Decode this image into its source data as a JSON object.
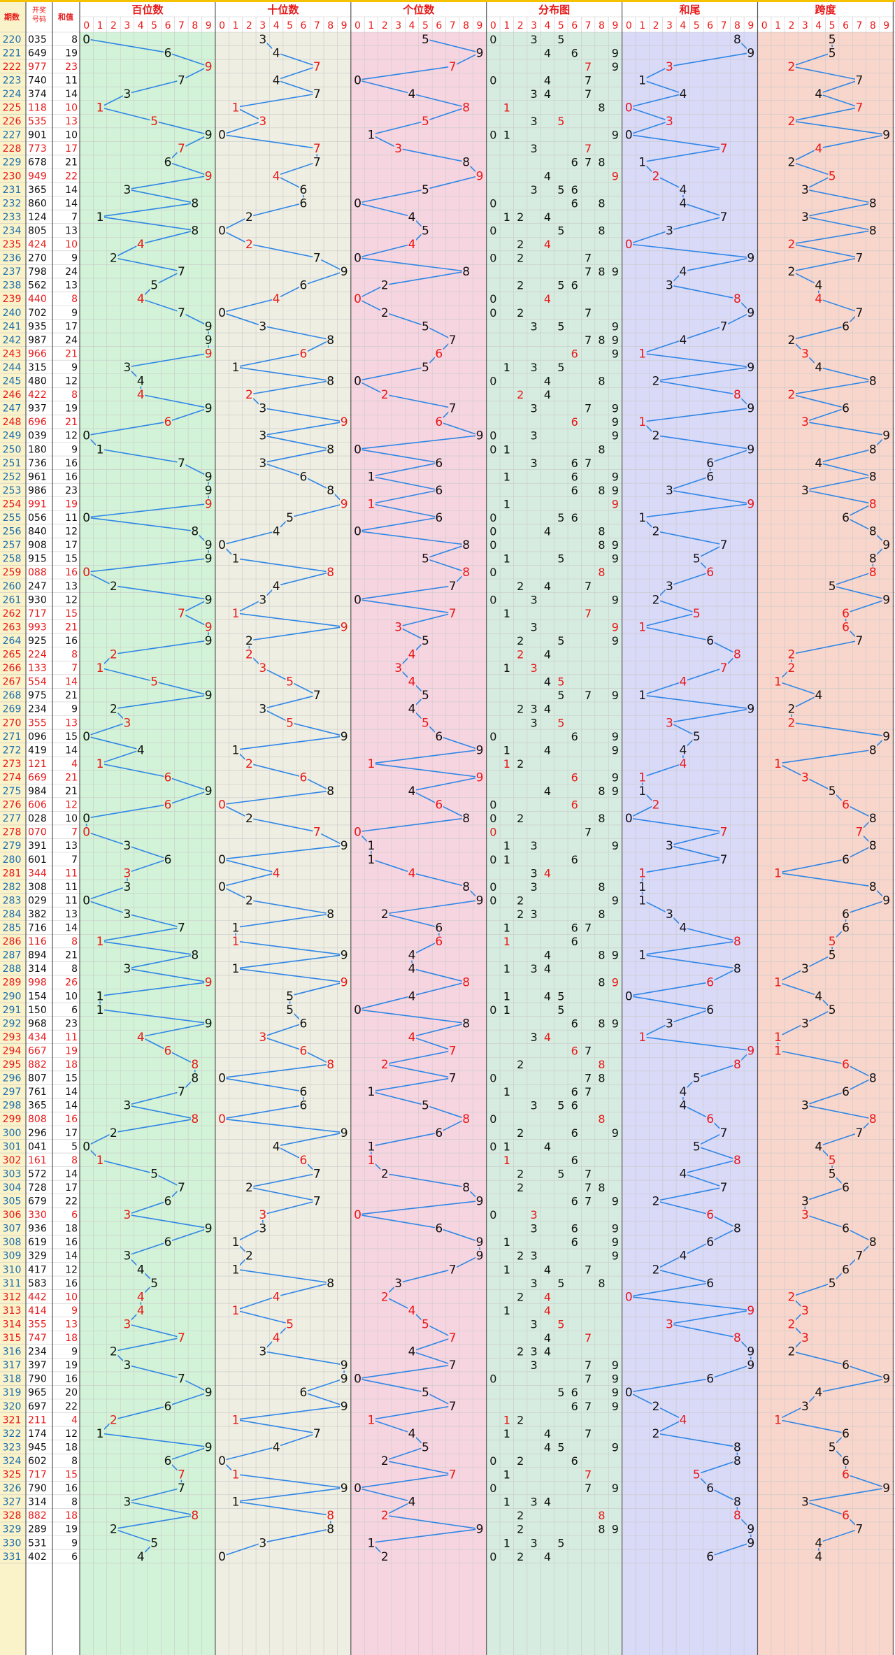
{
  "header": {
    "col_issue": "期数",
    "col_draw": "开奖号码",
    "col_sum": "和值",
    "sections": [
      "百位数",
      "十位数",
      "个位数",
      "分布图",
      "和尾",
      "跨度"
    ],
    "digits": [
      "0",
      "1",
      "2",
      "3",
      "4",
      "5",
      "6",
      "7",
      "8",
      "9"
    ]
  },
  "colors": {
    "gold": "#f5c200",
    "red": "#e81818",
    "blue": "#2f86e6",
    "issue_blue": "#1a6fb0",
    "section_bg": [
      "#d2f3d7",
      "#eeeee3",
      "#f6d5e0",
      "#d6ece0",
      "#d9d9f8",
      "#f8d6cc"
    ]
  },
  "chart_data": {
    "type": "table",
    "title": "",
    "rows": [
      {
        "issue": "220",
        "draw": "035",
        "sum": "8"
      },
      {
        "issue": "221",
        "draw": "649",
        "sum": "19"
      },
      {
        "issue": "222",
        "draw": "977",
        "sum": "23"
      },
      {
        "issue": "223",
        "draw": "740",
        "sum": "11"
      },
      {
        "issue": "224",
        "draw": "374",
        "sum": "14"
      },
      {
        "issue": "225",
        "draw": "118",
        "sum": "10"
      },
      {
        "issue": "226",
        "draw": "535",
        "sum": "13"
      },
      {
        "issue": "227",
        "draw": "901",
        "sum": "10"
      },
      {
        "issue": "228",
        "draw": "773",
        "sum": "17"
      },
      {
        "issue": "229",
        "draw": "678",
        "sum": "21"
      },
      {
        "issue": "230",
        "draw": "949",
        "sum": "22"
      },
      {
        "issue": "231",
        "draw": "365",
        "sum": "14"
      },
      {
        "issue": "232",
        "draw": "860",
        "sum": "14"
      },
      {
        "issue": "233",
        "draw": "124",
        "sum": "7"
      },
      {
        "issue": "234",
        "draw": "805",
        "sum": "13"
      },
      {
        "issue": "235",
        "draw": "424",
        "sum": "10"
      },
      {
        "issue": "236",
        "draw": "270",
        "sum": "9"
      },
      {
        "issue": "237",
        "draw": "798",
        "sum": "24"
      },
      {
        "issue": "238",
        "draw": "562",
        "sum": "13"
      },
      {
        "issue": "239",
        "draw": "440",
        "sum": "8"
      },
      {
        "issue": "240",
        "draw": "702",
        "sum": "9"
      },
      {
        "issue": "241",
        "draw": "935",
        "sum": "17"
      },
      {
        "issue": "242",
        "draw": "987",
        "sum": "24"
      },
      {
        "issue": "243",
        "draw": "966",
        "sum": "21"
      },
      {
        "issue": "244",
        "draw": "315",
        "sum": "9"
      },
      {
        "issue": "245",
        "draw": "480",
        "sum": "12"
      },
      {
        "issue": "246",
        "draw": "422",
        "sum": "8"
      },
      {
        "issue": "247",
        "draw": "937",
        "sum": "19"
      },
      {
        "issue": "248",
        "draw": "696",
        "sum": "21"
      },
      {
        "issue": "249",
        "draw": "039",
        "sum": "12"
      },
      {
        "issue": "250",
        "draw": "180",
        "sum": "9"
      },
      {
        "issue": "251",
        "draw": "736",
        "sum": "16"
      },
      {
        "issue": "252",
        "draw": "961",
        "sum": "16"
      },
      {
        "issue": "253",
        "draw": "986",
        "sum": "23"
      },
      {
        "issue": "254",
        "draw": "991",
        "sum": "19"
      },
      {
        "issue": "255",
        "draw": "056",
        "sum": "11"
      },
      {
        "issue": "256",
        "draw": "840",
        "sum": "12"
      },
      {
        "issue": "257",
        "draw": "908",
        "sum": "17"
      },
      {
        "issue": "258",
        "draw": "915",
        "sum": "15"
      },
      {
        "issue": "259",
        "draw": "088",
        "sum": "16"
      },
      {
        "issue": "260",
        "draw": "247",
        "sum": "13"
      },
      {
        "issue": "261",
        "draw": "930",
        "sum": "12"
      },
      {
        "issue": "262",
        "draw": "717",
        "sum": "15"
      },
      {
        "issue": "263",
        "draw": "993",
        "sum": "21"
      },
      {
        "issue": "264",
        "draw": "925",
        "sum": "16"
      },
      {
        "issue": "265",
        "draw": "224",
        "sum": "8"
      },
      {
        "issue": "266",
        "draw": "133",
        "sum": "7"
      },
      {
        "issue": "267",
        "draw": "554",
        "sum": "14"
      },
      {
        "issue": "268",
        "draw": "975",
        "sum": "21"
      },
      {
        "issue": "269",
        "draw": "234",
        "sum": "9"
      },
      {
        "issue": "270",
        "draw": "355",
        "sum": "13"
      },
      {
        "issue": "271",
        "draw": "096",
        "sum": "15"
      },
      {
        "issue": "272",
        "draw": "419",
        "sum": "14"
      },
      {
        "issue": "273",
        "draw": "121",
        "sum": "4"
      },
      {
        "issue": "274",
        "draw": "669",
        "sum": "21"
      },
      {
        "issue": "275",
        "draw": "984",
        "sum": "21"
      },
      {
        "issue": "276",
        "draw": "606",
        "sum": "12"
      },
      {
        "issue": "277",
        "draw": "028",
        "sum": "10"
      },
      {
        "issue": "278",
        "draw": "070",
        "sum": "7"
      },
      {
        "issue": "279",
        "draw": "391",
        "sum": "13"
      },
      {
        "issue": "280",
        "draw": "601",
        "sum": "7"
      },
      {
        "issue": "281",
        "draw": "344",
        "sum": "11"
      },
      {
        "issue": "282",
        "draw": "308",
        "sum": "11"
      },
      {
        "issue": "283",
        "draw": "029",
        "sum": "11"
      },
      {
        "issue": "284",
        "draw": "382",
        "sum": "13"
      },
      {
        "issue": "285",
        "draw": "716",
        "sum": "14"
      },
      {
        "issue": "286",
        "draw": "116",
        "sum": "8"
      },
      {
        "issue": "287",
        "draw": "894",
        "sum": "21"
      },
      {
        "issue": "288",
        "draw": "314",
        "sum": "8"
      },
      {
        "issue": "289",
        "draw": "998",
        "sum": "26"
      },
      {
        "issue": "290",
        "draw": "154",
        "sum": "10"
      },
      {
        "issue": "291",
        "draw": "150",
        "sum": "6"
      },
      {
        "issue": "292",
        "draw": "968",
        "sum": "23"
      },
      {
        "issue": "293",
        "draw": "434",
        "sum": "11"
      },
      {
        "issue": "294",
        "draw": "667",
        "sum": "19"
      },
      {
        "issue": "295",
        "draw": "882",
        "sum": "18"
      },
      {
        "issue": "296",
        "draw": "807",
        "sum": "15"
      },
      {
        "issue": "297",
        "draw": "761",
        "sum": "14"
      },
      {
        "issue": "298",
        "draw": "365",
        "sum": "14"
      },
      {
        "issue": "299",
        "draw": "808",
        "sum": "16"
      },
      {
        "issue": "300",
        "draw": "296",
        "sum": "17"
      },
      {
        "issue": "301",
        "draw": "041",
        "sum": "5"
      },
      {
        "issue": "302",
        "draw": "161",
        "sum": "8"
      },
      {
        "issue": "303",
        "draw": "572",
        "sum": "14"
      },
      {
        "issue": "304",
        "draw": "728",
        "sum": "17"
      },
      {
        "issue": "305",
        "draw": "679",
        "sum": "22"
      },
      {
        "issue": "306",
        "draw": "330",
        "sum": "6"
      },
      {
        "issue": "307",
        "draw": "936",
        "sum": "18"
      },
      {
        "issue": "308",
        "draw": "619",
        "sum": "16"
      },
      {
        "issue": "309",
        "draw": "329",
        "sum": "14"
      },
      {
        "issue": "310",
        "draw": "417",
        "sum": "12"
      },
      {
        "issue": "311",
        "draw": "583",
        "sum": "16"
      },
      {
        "issue": "312",
        "draw": "442",
        "sum": "10"
      },
      {
        "issue": "313",
        "draw": "414",
        "sum": "9"
      },
      {
        "issue": "314",
        "draw": "355",
        "sum": "13"
      },
      {
        "issue": "315",
        "draw": "747",
        "sum": "18"
      },
      {
        "issue": "316",
        "draw": "234",
        "sum": "9"
      },
      {
        "issue": "317",
        "draw": "397",
        "sum": "19"
      },
      {
        "issue": "318",
        "draw": "790",
        "sum": "16"
      },
      {
        "issue": "319",
        "draw": "965",
        "sum": "20"
      },
      {
        "issue": "320",
        "draw": "697",
        "sum": "22"
      },
      {
        "issue": "321",
        "draw": "211",
        "sum": "4"
      },
      {
        "issue": "322",
        "draw": "174",
        "sum": "12"
      },
      {
        "issue": "323",
        "draw": "945",
        "sum": "18"
      },
      {
        "issue": "324",
        "draw": "602",
        "sum": "8"
      },
      {
        "issue": "325",
        "draw": "717",
        "sum": "15"
      },
      {
        "issue": "326",
        "draw": "790",
        "sum": "16"
      },
      {
        "issue": "327",
        "draw": "314",
        "sum": "8"
      },
      {
        "issue": "328",
        "draw": "882",
        "sum": "18"
      },
      {
        "issue": "329",
        "draw": "289",
        "sum": "19"
      },
      {
        "issue": "330",
        "draw": "531",
        "sum": "9"
      },
      {
        "issue": "331",
        "draw": "402",
        "sum": "6"
      }
    ]
  }
}
